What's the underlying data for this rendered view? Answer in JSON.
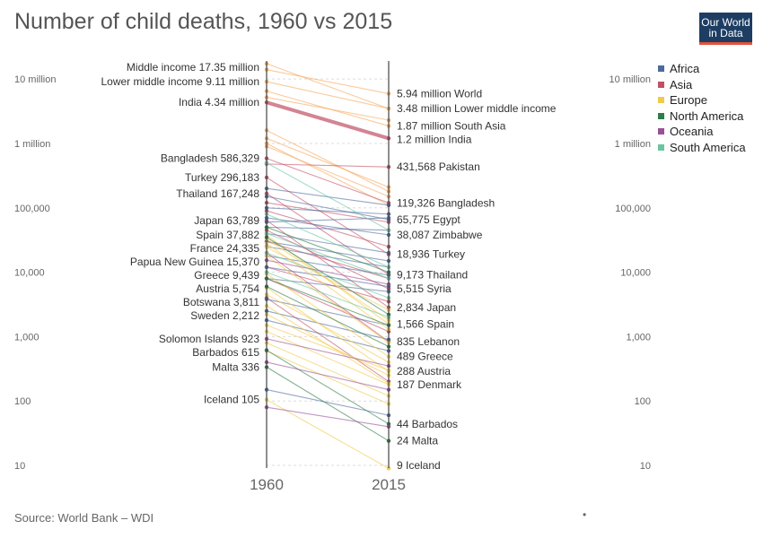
{
  "header": {
    "title": "Number of child deaths, 1960 vs 2015"
  },
  "logo": {
    "line1": "Our World",
    "line2": "in Data"
  },
  "footer": {
    "source": "Source: World Bank – WDI",
    "dot": "•"
  },
  "colors": {
    "Africa": "#4c6a9c",
    "Asia": "#c15065",
    "Europe": "#f2c94c",
    "North America": "#2d7d46",
    "Oceania": "#9a4f96",
    "South America": "#6ac6a0",
    "Aggregate": "#f5a65b",
    "axis": "#444444",
    "grid": "#dddddd"
  },
  "chart_data": {
    "type": "slope",
    "title": "Number of child deaths, 1960 vs 2015",
    "x": [
      "1960",
      "2015"
    ],
    "y_scale": "log",
    "ylim": [
      10,
      17350000
    ],
    "y_ticks": [
      {
        "value": 10,
        "label": "10"
      },
      {
        "value": 100,
        "label": "100"
      },
      {
        "value": 1000,
        "label": "1,000"
      },
      {
        "value": 10000,
        "label": "10,000"
      },
      {
        "value": 100000,
        "label": "100,000"
      },
      {
        "value": 1000000,
        "label": "1 million"
      },
      {
        "value": 10000000,
        "label": "10 million"
      }
    ],
    "legend": {
      "placement": "top-right",
      "entries": [
        "Africa",
        "Asia",
        "Europe",
        "North America",
        "Oceania",
        "South America"
      ]
    },
    "labels_1960": [
      {
        "text": "Middle income 17.35 million",
        "value": 17350000
      },
      {
        "text": "Lower middle income 9.11 million",
        "value": 9110000
      },
      {
        "text": "India 4.34 million",
        "value": 4340000
      },
      {
        "text": "Bangladesh 586,329",
        "value": 586329
      },
      {
        "text": "Turkey 296,183",
        "value": 296183
      },
      {
        "text": "Thailand 167,248",
        "value": 167248
      },
      {
        "text": "Japan 63,789",
        "value": 63789
      },
      {
        "text": "Spain 37,882",
        "value": 37882
      },
      {
        "text": "France 24,335",
        "value": 24335
      },
      {
        "text": "Papua New Guinea 15,370",
        "value": 15370
      },
      {
        "text": "Greece 9,439",
        "value": 9439
      },
      {
        "text": "Austria 5,754",
        "value": 5754
      },
      {
        "text": "Botswana 3,811",
        "value": 3811
      },
      {
        "text": "Sweden 2,212",
        "value": 2212
      },
      {
        "text": "Solomon Islands 923",
        "value": 923
      },
      {
        "text": "Barbados 615",
        "value": 615
      },
      {
        "text": "Malta 336",
        "value": 336
      },
      {
        "text": "Iceland 105",
        "value": 105
      }
    ],
    "labels_2015": [
      {
        "text": "5.94 million World",
        "value": 5940000
      },
      {
        "text": "3.48 million Lower middle income",
        "value": 3480000
      },
      {
        "text": "1.87 million South Asia",
        "value": 1870000
      },
      {
        "text": "1.2 million India",
        "value": 1200000
      },
      {
        "text": "431,568 Pakistan",
        "value": 431568
      },
      {
        "text": "119,326 Bangladesh",
        "value": 119326
      },
      {
        "text": "65,775 Egypt",
        "value": 65775
      },
      {
        "text": "38,087 Zimbabwe",
        "value": 38087
      },
      {
        "text": "18,936 Turkey",
        "value": 18936
      },
      {
        "text": "9,173 Thailand",
        "value": 9173
      },
      {
        "text": "5,515 Syria",
        "value": 5515
      },
      {
        "text": "2,834 Japan",
        "value": 2834
      },
      {
        "text": "1,566 Spain",
        "value": 1566
      },
      {
        "text": "835 Lebanon",
        "value": 835
      },
      {
        "text": "489 Greece",
        "value": 489
      },
      {
        "text": "288 Austria",
        "value": 288
      },
      {
        "text": "187 Denmark",
        "value": 187
      },
      {
        "text": "44 Barbados",
        "value": 44
      },
      {
        "text": "24 Malta",
        "value": 24
      },
      {
        "text": "9 Iceland",
        "value": 9
      }
    ],
    "series": [
      {
        "region": "Aggregate",
        "v1960": 17350000,
        "v2015": 3480000
      },
      {
        "region": "Aggregate",
        "v1960": 14000000,
        "v2015": 5940000
      },
      {
        "region": "Aggregate",
        "v1960": 9110000,
        "v2015": 3480000
      },
      {
        "region": "Aggregate",
        "v1960": 6500000,
        "v2015": 1870000
      },
      {
        "region": "Aggregate",
        "v1960": 5200000,
        "v2015": 2300000
      },
      {
        "region": "Aggregate",
        "v1960": 1600000,
        "v2015": 180000
      },
      {
        "region": "Aggregate",
        "v1960": 1200000,
        "v2015": 210000
      },
      {
        "region": "Aggregate",
        "v1960": 900000,
        "v2015": 150000
      },
      {
        "region": "Aggregate",
        "v1960": 1000000,
        "v2015": 110000
      },
      {
        "region": "Asia",
        "v1960": 4340000,
        "v2015": 1200000,
        "highlight": true
      },
      {
        "region": "Asia",
        "v1960": 586329,
        "v2015": 119326
      },
      {
        "region": "Asia",
        "v1960": 480000,
        "v2015": 431568
      },
      {
        "region": "Asia",
        "v1960": 296183,
        "v2015": 18936
      },
      {
        "region": "Asia",
        "v1960": 167248,
        "v2015": 9173
      },
      {
        "region": "Asia",
        "v1960": 63789,
        "v2015": 2834
      },
      {
        "region": "Asia",
        "v1960": 120000,
        "v2015": 60000
      },
      {
        "region": "Asia",
        "v1960": 90000,
        "v2015": 25000
      },
      {
        "region": "Asia",
        "v1960": 45000,
        "v2015": 5515
      },
      {
        "region": "Asia",
        "v1960": 30000,
        "v2015": 8000
      },
      {
        "region": "Asia",
        "v1960": 20000,
        "v2015": 835
      },
      {
        "region": "Asia",
        "v1960": 12000,
        "v2015": 3500
      },
      {
        "region": "Asia",
        "v1960": 8000,
        "v2015": 1200
      },
      {
        "region": "Asia",
        "v1960": 4000,
        "v2015": 200
      },
      {
        "region": "Africa",
        "v1960": 200000,
        "v2015": 110000
      },
      {
        "region": "Africa",
        "v1960": 150000,
        "v2015": 65775
      },
      {
        "region": "Africa",
        "v1960": 100000,
        "v2015": 80000
      },
      {
        "region": "Africa",
        "v1960": 70000,
        "v2015": 38087
      },
      {
        "region": "Africa",
        "v1960": 60000,
        "v2015": 70000
      },
      {
        "region": "Africa",
        "v1960": 50000,
        "v2015": 45000
      },
      {
        "region": "Africa",
        "v1960": 40000,
        "v2015": 20000
      },
      {
        "region": "Africa",
        "v1960": 30000,
        "v2015": 15000
      },
      {
        "region": "Africa",
        "v1960": 25000,
        "v2015": 12000
      },
      {
        "region": "Africa",
        "v1960": 18000,
        "v2015": 9000
      },
      {
        "region": "Africa",
        "v1960": 12000,
        "v2015": 6000
      },
      {
        "region": "Africa",
        "v1960": 8000,
        "v2015": 5000
      },
      {
        "region": "Africa",
        "v1960": 3811,
        "v2015": 1500
      },
      {
        "region": "Africa",
        "v1960": 2500,
        "v2015": 900
      },
      {
        "region": "Africa",
        "v1960": 1800,
        "v2015": 600
      },
      {
        "region": "Africa",
        "v1960": 150,
        "v2015": 60
      },
      {
        "region": "Europe",
        "v1960": 37882,
        "v2015": 1566
      },
      {
        "region": "Europe",
        "v1960": 24335,
        "v2015": 2600
      },
      {
        "region": "Europe",
        "v1960": 33000,
        "v2015": 1800
      },
      {
        "region": "Europe",
        "v1960": 28000,
        "v2015": 1300
      },
      {
        "region": "Europe",
        "v1960": 18000,
        "v2015": 800
      },
      {
        "region": "Europe",
        "v1960": 9439,
        "v2015": 489
      },
      {
        "region": "Europe",
        "v1960": 5754,
        "v2015": 288
      },
      {
        "region": "Europe",
        "v1960": 4500,
        "v2015": 400
      },
      {
        "region": "Europe",
        "v1960": 3000,
        "v2015": 187
      },
      {
        "region": "Europe",
        "v1960": 2212,
        "v2015": 250
      },
      {
        "region": "Europe",
        "v1960": 1500,
        "v2015": 300
      },
      {
        "region": "Europe",
        "v1960": 1200,
        "v2015": 180
      },
      {
        "region": "Europe",
        "v1960": 800,
        "v2015": 120
      },
      {
        "region": "Europe",
        "v1960": 600,
        "v2015": 90
      },
      {
        "region": "Europe",
        "v1960": 105,
        "v2015": 9
      },
      {
        "region": "North America",
        "v1960": 50000,
        "v2015": 10000
      },
      {
        "region": "North America",
        "v1960": 35000,
        "v2015": 2200
      },
      {
        "region": "North America",
        "v1960": 8000,
        "v2015": 1500
      },
      {
        "region": "North America",
        "v1960": 6000,
        "v2015": 700
      },
      {
        "region": "North America",
        "v1960": 615,
        "v2015": 44
      },
      {
        "region": "North America",
        "v1960": 336,
        "v2015": 24
      },
      {
        "region": "Oceania",
        "v1960": 15370,
        "v2015": 6500
      },
      {
        "region": "Oceania",
        "v1960": 923,
        "v2015": 350
      },
      {
        "region": "Oceania",
        "v1960": 400,
        "v2015": 150
      },
      {
        "region": "Oceania",
        "v1960": 80,
        "v2015": 40
      },
      {
        "region": "South America",
        "v1960": 500000,
        "v2015": 45000
      },
      {
        "region": "South America",
        "v1960": 80000,
        "v2015": 12000
      },
      {
        "region": "South America",
        "v1960": 40000,
        "v2015": 8000
      },
      {
        "region": "South America",
        "v1960": 20000,
        "v2015": 4000
      },
      {
        "region": "South America",
        "v1960": 10000,
        "v2015": 2000
      }
    ]
  }
}
